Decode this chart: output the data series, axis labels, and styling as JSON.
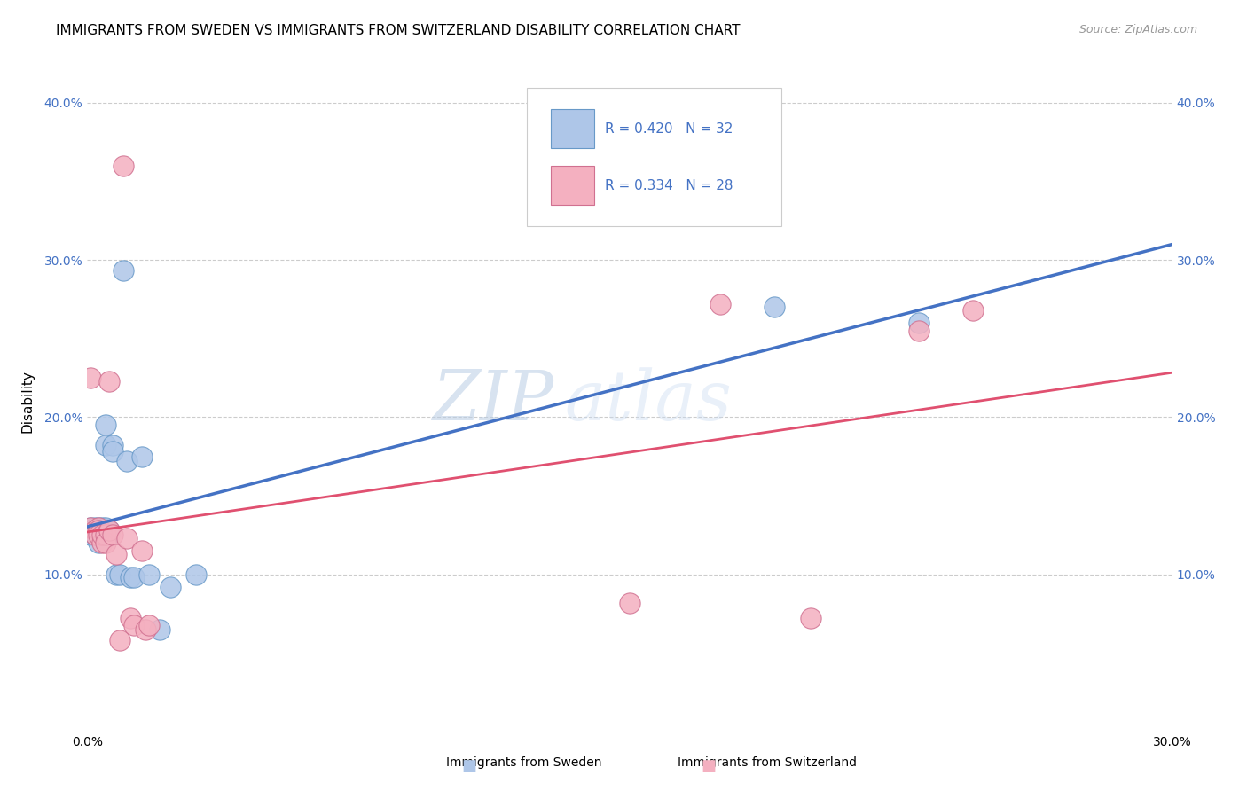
{
  "title": "IMMIGRANTS FROM SWEDEN VS IMMIGRANTS FROM SWITZERLAND DISABILITY CORRELATION CHART",
  "source": "Source: ZipAtlas.com",
  "ylabel": "Disability",
  "xlim": [
    0.0,
    0.3
  ],
  "ylim": [
    0.0,
    0.42
  ],
  "xticks": [
    0.0,
    0.05,
    0.1,
    0.15,
    0.2,
    0.25,
    0.3
  ],
  "xticklabels": [
    "0.0%",
    "",
    "",
    "",
    "",
    "",
    "30.0%"
  ],
  "yticks": [
    0.0,
    0.1,
    0.2,
    0.3,
    0.4
  ],
  "yticklabels": [
    "",
    "10.0%",
    "20.0%",
    "30.0%",
    "40.0%"
  ],
  "sweden_color": "#aec6e8",
  "sweden_edge": "#6899c8",
  "sweden_line_color": "#4472c4",
  "switzerland_color": "#f4b0c0",
  "switzerland_edge": "#d07090",
  "switzerland_line_color": "#e05070",
  "watermark_text": "ZIPatlas",
  "legend_label_sweden": "Immigrants from Sweden",
  "legend_label_switzerland": "Immigrants from Switzerland",
  "sweden_R": 0.42,
  "sweden_N": 32,
  "switzerland_R": 0.334,
  "switzerland_N": 28,
  "sweden_x": [
    0.001,
    0.001,
    0.002,
    0.002,
    0.002,
    0.003,
    0.003,
    0.003,
    0.003,
    0.004,
    0.004,
    0.004,
    0.005,
    0.005,
    0.005,
    0.006,
    0.006,
    0.007,
    0.007,
    0.008,
    0.009,
    0.01,
    0.011,
    0.012,
    0.013,
    0.015,
    0.017,
    0.02,
    0.023,
    0.03,
    0.19,
    0.23
  ],
  "sweden_y": [
    0.13,
    0.125,
    0.13,
    0.128,
    0.125,
    0.13,
    0.128,
    0.125,
    0.12,
    0.13,
    0.128,
    0.125,
    0.195,
    0.182,
    0.13,
    0.128,
    0.125,
    0.182,
    0.178,
    0.1,
    0.1,
    0.293,
    0.172,
    0.098,
    0.098,
    0.175,
    0.1,
    0.065,
    0.092,
    0.1,
    0.27,
    0.26
  ],
  "switzerland_x": [
    0.001,
    0.001,
    0.002,
    0.002,
    0.003,
    0.003,
    0.003,
    0.004,
    0.004,
    0.005,
    0.005,
    0.006,
    0.006,
    0.007,
    0.008,
    0.009,
    0.01,
    0.011,
    0.012,
    0.013,
    0.015,
    0.016,
    0.017,
    0.15,
    0.175,
    0.2,
    0.23,
    0.245
  ],
  "switzerland_y": [
    0.225,
    0.13,
    0.128,
    0.125,
    0.13,
    0.128,
    0.125,
    0.12,
    0.125,
    0.125,
    0.12,
    0.128,
    0.223,
    0.125,
    0.113,
    0.058,
    0.36,
    0.123,
    0.072,
    0.068,
    0.115,
    0.065,
    0.068,
    0.082,
    0.272,
    0.072,
    0.255,
    0.268
  ],
  "grid_color": "#cccccc",
  "background_color": "#ffffff",
  "title_fontsize": 11,
  "ylabel_fontsize": 11,
  "tick_fontsize": 10,
  "source_fontsize": 9,
  "legend_fontsize": 11
}
